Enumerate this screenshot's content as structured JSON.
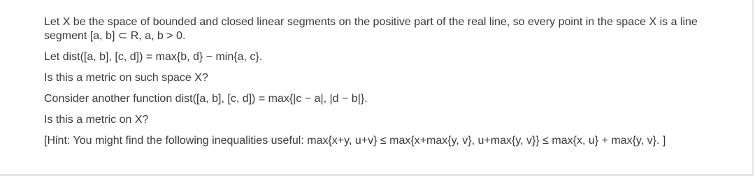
{
  "paragraphs": [
    "Let X be the space of bounded and closed linear segments on the positive part of the real line, so every point in the space X is a line segment [a, b] ⊂ R, a, b > 0.",
    "Let dist([a, b], [c, d]) = max{b, d} − min{a, c}.",
    "Is this a metric on such space X?",
    "Consider another function dist([a, b], [c, d]) = max{|c − a|, |d − b|}.",
    "Is this a metric on X?",
    "[Hint: You might find the following inequalities useful: max{x+y, u+v} ≤ max{x+max{y, v}, u+max{y, v}} ≤ max{x, u} + max{y, v}. ]"
  ]
}
